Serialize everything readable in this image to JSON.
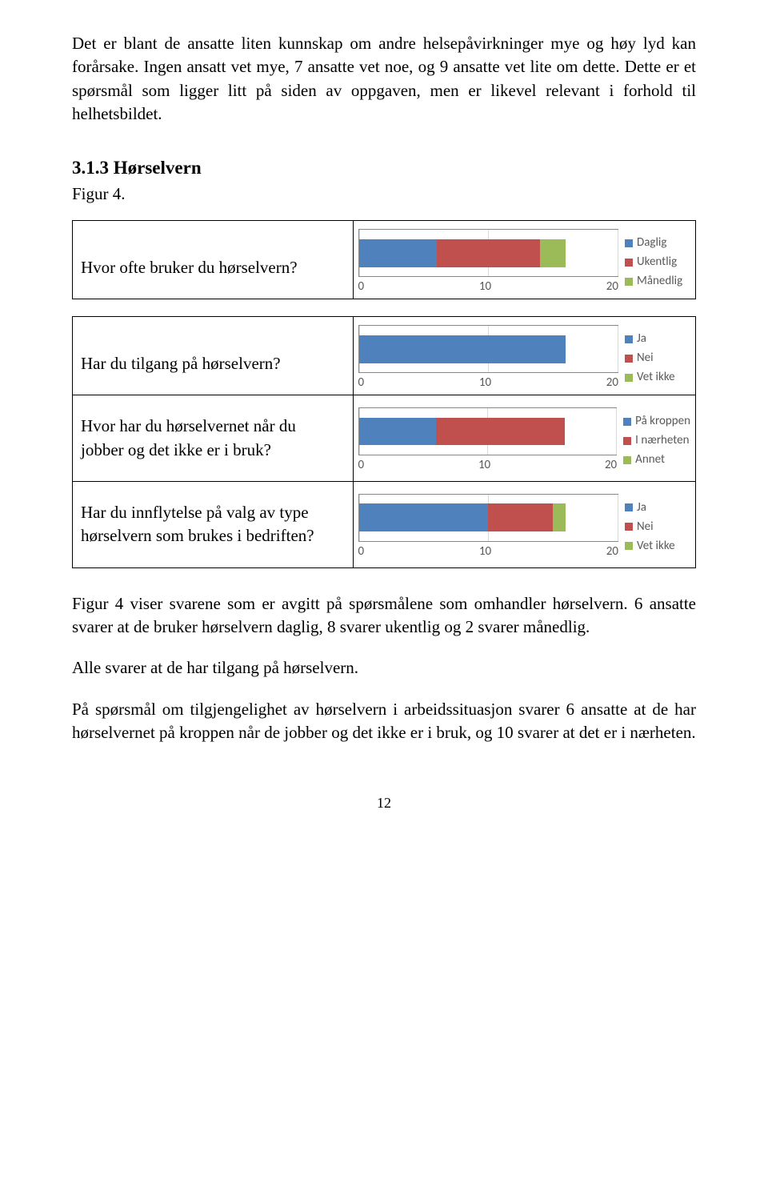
{
  "intro_para": "Det er blant de ansatte liten kunnskap om andre helsepåvirkninger mye og høy lyd kan forårsake. Ingen ansatt vet mye, 7 ansatte vet noe, og 9 ansatte vet lite om dette. Dette er et spørsmål som ligger litt på siden av oppgaven, men er likevel relevant i forhold til helhetsbildet.",
  "section_heading": "3.1.3 Hørselvern",
  "figure_label": "Figur 4.",
  "colors": {
    "blue": "#4f81bd",
    "red": "#c0504d",
    "green": "#9bbb59",
    "grid": "#d9d9d9",
    "axis_text": "#595959"
  },
  "axis": {
    "min": 0,
    "mid": 10,
    "max": 20
  },
  "charts": [
    {
      "question": "Hvor ofte bruker du hørselvern?",
      "segments": [
        {
          "value": 6,
          "color": "#4f81bd",
          "label": "Daglig"
        },
        {
          "value": 8,
          "color": "#c0504d",
          "label": "Ukentlig"
        },
        {
          "value": 2,
          "color": "#9bbb59",
          "label": "Månedlig"
        }
      ]
    },
    {
      "question": "Har du tilgang på hørselvern?",
      "segments": [
        {
          "value": 16,
          "color": "#4f81bd",
          "label": "Ja"
        },
        {
          "value": 0,
          "color": "#c0504d",
          "label": "Nei"
        },
        {
          "value": 0,
          "color": "#9bbb59",
          "label": "Vet ikke"
        }
      ]
    },
    {
      "question": "Hvor har du hørselvernet når du jobber og det ikke er i bruk?",
      "segments": [
        {
          "value": 6,
          "color": "#4f81bd",
          "label": "På kroppen"
        },
        {
          "value": 10,
          "color": "#c0504d",
          "label": "I nærheten"
        },
        {
          "value": 0,
          "color": "#9bbb59",
          "label": "Annet"
        }
      ]
    },
    {
      "question": "Har du innflytelse på valg av type hørselvern som brukes i bedriften?",
      "segments": [
        {
          "value": 10,
          "color": "#4f81bd",
          "label": "Ja"
        },
        {
          "value": 5,
          "color": "#c0504d",
          "label": "Nei"
        },
        {
          "value": 1,
          "color": "#9bbb59",
          "label": "Vet ikke"
        }
      ]
    }
  ],
  "para2": "Figur 4 viser svarene som er avgitt på spørsmålene som omhandler hørselvern. 6 ansatte svarer at de bruker hørselvern daglig, 8 svarer ukentlig og 2 svarer månedlig.",
  "para3": "Alle svarer at de har tilgang på hørselvern.",
  "para4": "På spørsmål om tilgjengelighet av hørselvern i arbeidssituasjon svarer 6 ansatte at de har hørselvernet på kroppen når de jobber og det ikke er i bruk, og 10 svarer at det er i nærheten.",
  "page_number": "12"
}
